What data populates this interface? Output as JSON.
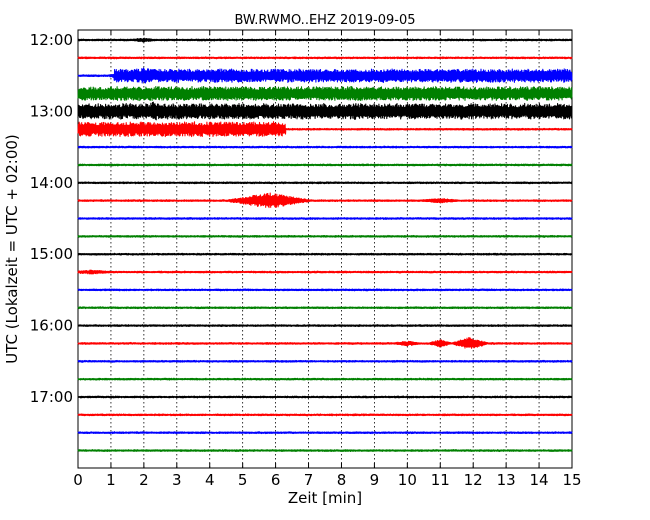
{
  "chart_data": {
    "type": "line",
    "title": "BW.RWMO..EHZ 2019-09-05",
    "xlabel": "Zeit  [min]",
    "ylabel": "UTC (Lokalzeit = UTC + 02:00)",
    "xlim": [
      0,
      15
    ],
    "xticks": [
      "0",
      "1",
      "2",
      "3",
      "4",
      "5",
      "6",
      "7",
      "8",
      "9",
      "10",
      "11",
      "12",
      "13",
      "14",
      "15"
    ],
    "yticks": [
      "12:00",
      "13:00",
      "14:00",
      "15:00",
      "16:00",
      "17:00"
    ],
    "trace_start": "12:00",
    "trace_interval_minutes": 15,
    "trace_count": 24,
    "grid": "vertical dotted",
    "colors": [
      "#000000",
      "#ff0000",
      "#0000ff",
      "#008000"
    ],
    "events": [
      {
        "trace": 0,
        "minute": 2.0,
        "amplitude": 0.25,
        "width": 0.6
      },
      {
        "trace": 2,
        "minute": 2.0,
        "amplitude": 1.0,
        "width": 1.2,
        "continuous_from": 1.1,
        "continuous_to": 15,
        "continuous_amplitude": 0.85
      },
      {
        "trace": 3,
        "minute": 0,
        "amplitude": 0.9,
        "width": 0,
        "continuous_from": 0,
        "continuous_to": 15,
        "continuous_amplitude": 0.9
      },
      {
        "trace": 4,
        "minute": 2.3,
        "amplitude": 1.3,
        "width": 0.4,
        "continuous_from": 0,
        "continuous_to": 15,
        "continuous_amplitude": 1.0
      },
      {
        "trace": 5,
        "minute": 3,
        "amplitude": 0.9,
        "width": 0,
        "continuous_from": 0,
        "continuous_to": 6.3,
        "continuous_amplitude": 0.95
      },
      {
        "trace": 9,
        "minute": 5.8,
        "amplitude": 1.0,
        "width": 1.4
      },
      {
        "trace": 9,
        "minute": 11.0,
        "amplitude": 0.3,
        "width": 0.8
      },
      {
        "trace": 13,
        "minute": 0.4,
        "amplitude": 0.25,
        "width": 1.0
      },
      {
        "trace": 17,
        "minute": 10.0,
        "amplitude": 0.3,
        "width": 0.6
      },
      {
        "trace": 17,
        "minute": 11.0,
        "amplitude": 0.5,
        "width": 0.4
      },
      {
        "trace": 17,
        "minute": 11.9,
        "amplitude": 0.8,
        "width": 0.6
      }
    ]
  }
}
